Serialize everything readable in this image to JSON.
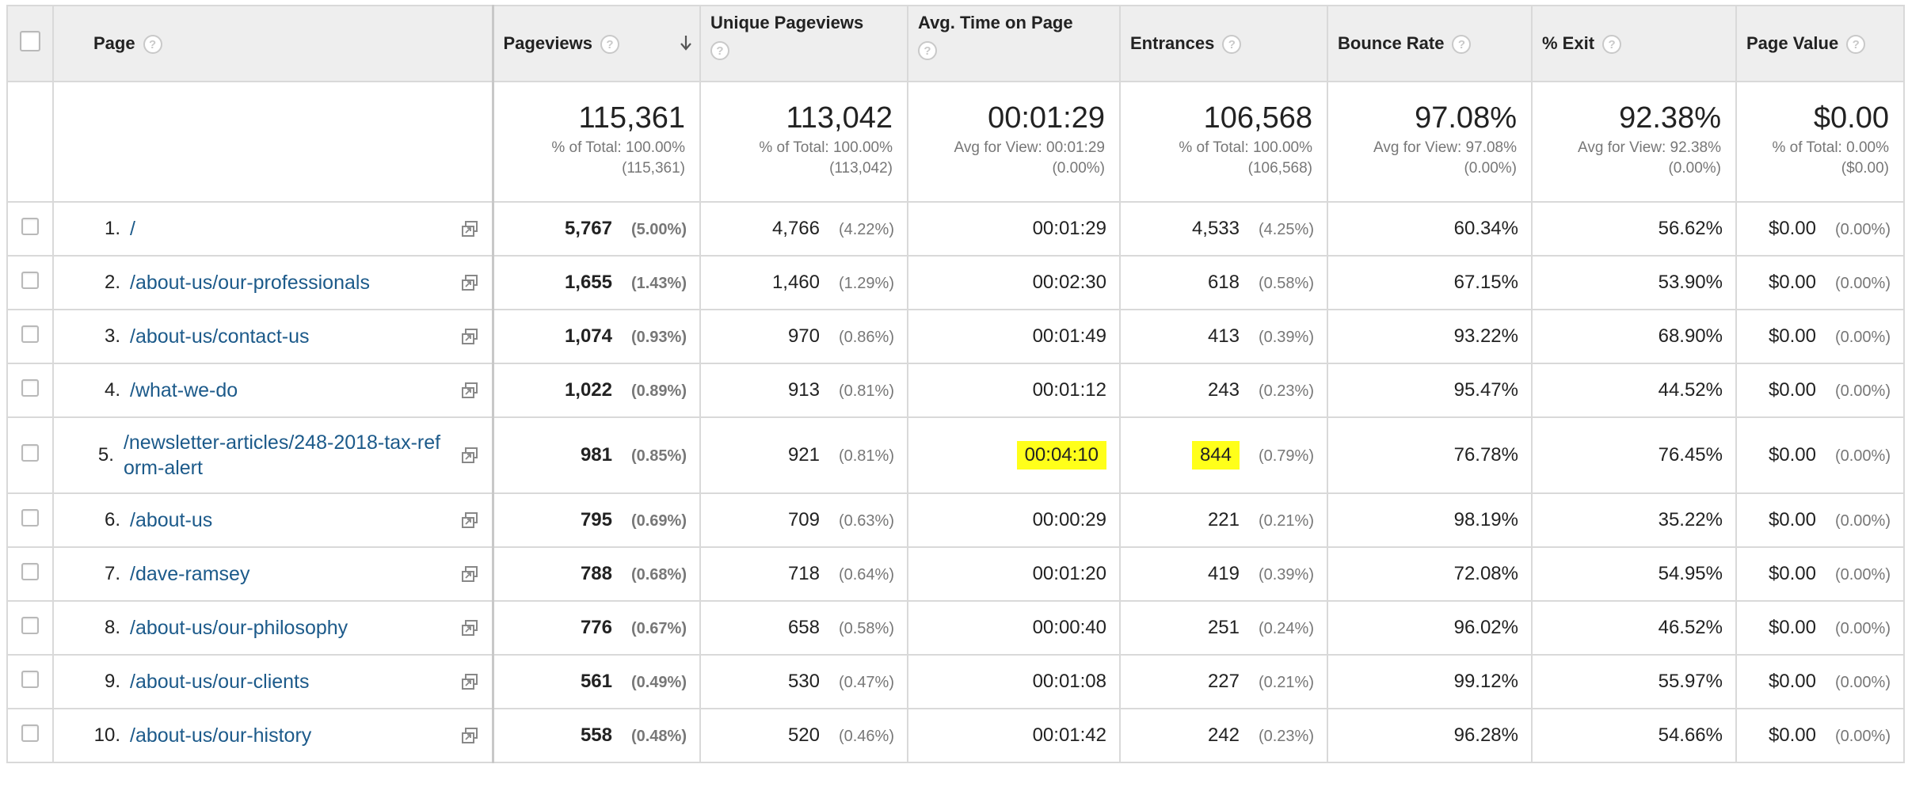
{
  "columns": {
    "page": "Page",
    "pageviews": "Pageviews",
    "unique_pageviews": "Unique Pageviews",
    "avg_time": "Avg. Time on Page",
    "entrances": "Entrances",
    "bounce_rate": "Bounce Rate",
    "exit": "% Exit",
    "page_value": "Page Value",
    "help": "?"
  },
  "totals": {
    "pageviews": {
      "value": "115,361",
      "line1": "% of Total: 100.00%",
      "line2": "(115,361)"
    },
    "unique_pageviews": {
      "value": "113,042",
      "line1": "% of Total: 100.00%",
      "line2": "(113,042)"
    },
    "avg_time": {
      "value": "00:01:29",
      "line1": "Avg for View: 00:01:29",
      "line2": "(0.00%)"
    },
    "entrances": {
      "value": "106,568",
      "line1": "% of Total: 100.00%",
      "line2": "(106,568)"
    },
    "bounce_rate": {
      "value": "97.08%",
      "line1": "Avg for View: 97.08%",
      "line2": "(0.00%)"
    },
    "exit": {
      "value": "92.38%",
      "line1": "Avg for View: 92.38%",
      "line2": "(0.00%)"
    },
    "page_value": {
      "value": "$0.00",
      "line1": "% of Total: 0.00%",
      "line2": "($0.00)"
    }
  },
  "rows": [
    {
      "rank": "1.",
      "page": "/",
      "pv": "5,767",
      "pv_pct": "(5.00%)",
      "upv": "4,766",
      "upv_pct": "(4.22%)",
      "avg": "00:01:29",
      "ent": "4,533",
      "ent_pct": "(4.25%)",
      "br": "60.34%",
      "exit": "56.62%",
      "val": "$0.00",
      "val_pct": "(0.00%)"
    },
    {
      "rank": "2.",
      "page": "/about-us/our-professionals",
      "pv": "1,655",
      "pv_pct": "(1.43%)",
      "upv": "1,460",
      "upv_pct": "(1.29%)",
      "avg": "00:02:30",
      "ent": "618",
      "ent_pct": "(0.58%)",
      "br": "67.15%",
      "exit": "53.90%",
      "val": "$0.00",
      "val_pct": "(0.00%)"
    },
    {
      "rank": "3.",
      "page": "/about-us/contact-us",
      "pv": "1,074",
      "pv_pct": "(0.93%)",
      "upv": "970",
      "upv_pct": "(0.86%)",
      "avg": "00:01:49",
      "ent": "413",
      "ent_pct": "(0.39%)",
      "br": "93.22%",
      "exit": "68.90%",
      "val": "$0.00",
      "val_pct": "(0.00%)"
    },
    {
      "rank": "4.",
      "page": "/what-we-do",
      "pv": "1,022",
      "pv_pct": "(0.89%)",
      "upv": "913",
      "upv_pct": "(0.81%)",
      "avg": "00:01:12",
      "ent": "243",
      "ent_pct": "(0.23%)",
      "br": "95.47%",
      "exit": "44.52%",
      "val": "$0.00",
      "val_pct": "(0.00%)"
    },
    {
      "rank": "5.",
      "page": "/newsletter-articles/248-2018-tax-reform-alert",
      "pv": "981",
      "pv_pct": "(0.85%)",
      "upv": "921",
      "upv_pct": "(0.81%)",
      "avg": "00:04:10",
      "ent": "844",
      "ent_pct": "(0.79%)",
      "br": "76.78%",
      "exit": "76.45%",
      "val": "$0.00",
      "val_pct": "(0.00%)",
      "highlight": true
    },
    {
      "rank": "6.",
      "page": "/about-us",
      "pv": "795",
      "pv_pct": "(0.69%)",
      "upv": "709",
      "upv_pct": "(0.63%)",
      "avg": "00:00:29",
      "ent": "221",
      "ent_pct": "(0.21%)",
      "br": "98.19%",
      "exit": "35.22%",
      "val": "$0.00",
      "val_pct": "(0.00%)"
    },
    {
      "rank": "7.",
      "page": "/dave-ramsey",
      "pv": "788",
      "pv_pct": "(0.68%)",
      "upv": "718",
      "upv_pct": "(0.64%)",
      "avg": "00:01:20",
      "ent": "419",
      "ent_pct": "(0.39%)",
      "br": "72.08%",
      "exit": "54.95%",
      "val": "$0.00",
      "val_pct": "(0.00%)"
    },
    {
      "rank": "8.",
      "page": "/about-us/our-philosophy",
      "pv": "776",
      "pv_pct": "(0.67%)",
      "upv": "658",
      "upv_pct": "(0.58%)",
      "avg": "00:00:40",
      "ent": "251",
      "ent_pct": "(0.24%)",
      "br": "96.02%",
      "exit": "46.52%",
      "val": "$0.00",
      "val_pct": "(0.00%)"
    },
    {
      "rank": "9.",
      "page": "/about-us/our-clients",
      "pv": "561",
      "pv_pct": "(0.49%)",
      "upv": "530",
      "upv_pct": "(0.47%)",
      "avg": "00:01:08",
      "ent": "227",
      "ent_pct": "(0.21%)",
      "br": "99.12%",
      "exit": "55.97%",
      "val": "$0.00",
      "val_pct": "(0.00%)"
    },
    {
      "rank": "10.",
      "page": "/about-us/our-history",
      "pv": "558",
      "pv_pct": "(0.48%)",
      "upv": "520",
      "upv_pct": "(0.46%)",
      "avg": "00:01:42",
      "ent": "242",
      "ent_pct": "(0.23%)",
      "br": "96.28%",
      "exit": "54.66%",
      "val": "$0.00",
      "val_pct": "(0.00%)"
    }
  ],
  "colors": {
    "link": "#1c5a8a",
    "highlight": "#ffff1a",
    "header_bg": "#eeeeee"
  },
  "icons": {
    "help": "help-circle-icon",
    "sort": "arrow-down-icon",
    "external": "open-in-new-window-icon"
  }
}
